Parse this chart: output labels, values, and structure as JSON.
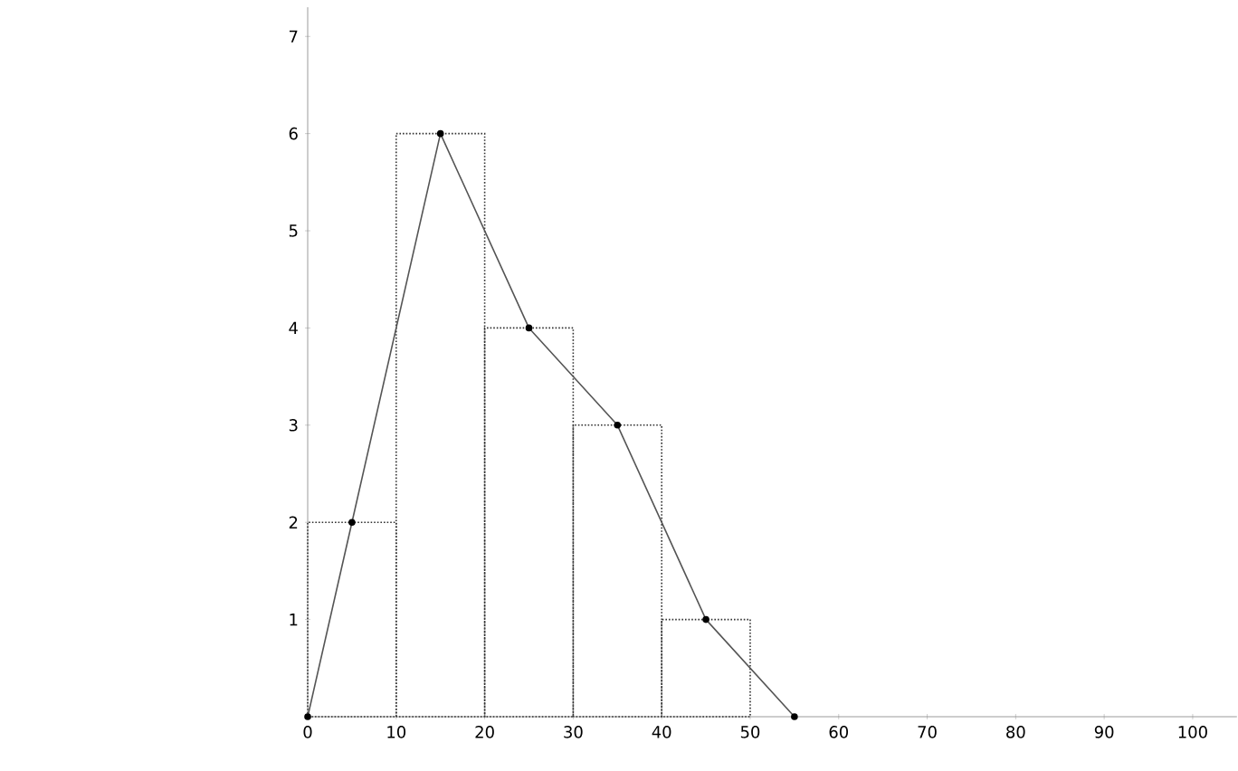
{
  "chart_data": {
    "type": "histogram",
    "bins": [
      0,
      10,
      20,
      30,
      40,
      50
    ],
    "values": [
      2,
      6,
      4,
      3,
      1
    ],
    "color": "#333333",
    "line_style": "dotted",
    "series": [
      {
        "type": "line",
        "x": [
          0,
          5,
          15,
          25,
          35,
          45,
          55
        ],
        "values": [
          0,
          2,
          6,
          4,
          3,
          1,
          0
        ],
        "color": "#555555",
        "marker": "circle",
        "line_style": "solid"
      }
    ],
    "xlim": [
      0,
      105
    ],
    "ylim": [
      0,
      7.3
    ],
    "xticks": [
      0,
      10,
      20,
      30,
      40,
      50,
      60,
      70,
      80,
      90,
      100
    ],
    "yticks": [
      1,
      2,
      3,
      4,
      5,
      6,
      7
    ]
  }
}
